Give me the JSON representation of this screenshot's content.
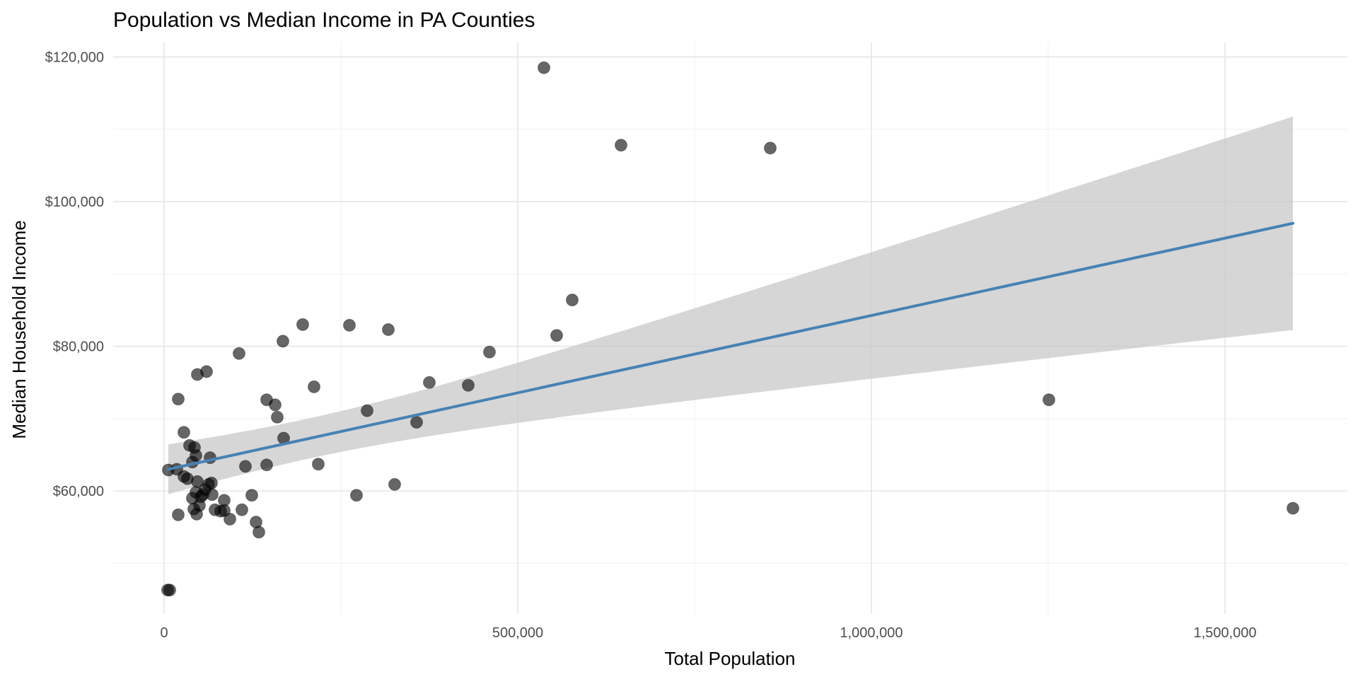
{
  "chart_data": {
    "type": "scatter",
    "title": "Population vs Median Income in PA Counties",
    "xlabel": "Total Population",
    "ylabel": "Median Household Income",
    "xlim": [
      -72000,
      1673000
    ],
    "ylim": [
      43000,
      122000
    ],
    "x_ticks": [
      0,
      500000,
      1000000,
      1500000
    ],
    "x_tick_labels": [
      "0",
      "500,000",
      "1,000,000",
      "1,500,000"
    ],
    "x_minor_ticks": [
      250000,
      750000,
      1250000
    ],
    "y_ticks": [
      60000,
      80000,
      100000,
      120000
    ],
    "y_tick_labels": [
      "$60,000",
      "$80,000",
      "$100,000",
      "$120,000"
    ],
    "y_minor_ticks": [
      50000,
      70000,
      90000,
      110000
    ],
    "grid": true,
    "legend": "none",
    "colors": {
      "points": "#000000",
      "point_opacity": 0.6,
      "trend_line": "#4682B4",
      "confidence_band": "#c8c8c8",
      "grid_major": "#e6e6e6",
      "grid_minor": "#f2f2f2",
      "tick_text": "#4d4d4d"
    },
    "points": [
      {
        "x": 5000,
        "y": 46300
      },
      {
        "x": 8000,
        "y": 46300
      },
      {
        "x": 6000,
        "y": 62900
      },
      {
        "x": 18000,
        "y": 63000
      },
      {
        "x": 20000,
        "y": 56700
      },
      {
        "x": 20000,
        "y": 72700
      },
      {
        "x": 28000,
        "y": 62000
      },
      {
        "x": 28000,
        "y": 68100
      },
      {
        "x": 33000,
        "y": 61700
      },
      {
        "x": 36000,
        "y": 66300
      },
      {
        "x": 40000,
        "y": 64000
      },
      {
        "x": 40000,
        "y": 59000
      },
      {
        "x": 42000,
        "y": 57500
      },
      {
        "x": 43000,
        "y": 66000
      },
      {
        "x": 45000,
        "y": 59800
      },
      {
        "x": 45000,
        "y": 64900
      },
      {
        "x": 46000,
        "y": 56800
      },
      {
        "x": 47000,
        "y": 61300
      },
      {
        "x": 47000,
        "y": 76100
      },
      {
        "x": 50000,
        "y": 58000
      },
      {
        "x": 52000,
        "y": 59200
      },
      {
        "x": 55000,
        "y": 59500
      },
      {
        "x": 58000,
        "y": 60200
      },
      {
        "x": 60000,
        "y": 76500
      },
      {
        "x": 63000,
        "y": 60900
      },
      {
        "x": 65000,
        "y": 64600
      },
      {
        "x": 67000,
        "y": 61100
      },
      {
        "x": 68000,
        "y": 59500
      },
      {
        "x": 72000,
        "y": 57400
      },
      {
        "x": 80000,
        "y": 57200
      },
      {
        "x": 85000,
        "y": 58700
      },
      {
        "x": 85000,
        "y": 57300
      },
      {
        "x": 93000,
        "y": 56100
      },
      {
        "x": 106000,
        "y": 79000
      },
      {
        "x": 110000,
        "y": 57400
      },
      {
        "x": 115000,
        "y": 63400
      },
      {
        "x": 124000,
        "y": 59400
      },
      {
        "x": 130000,
        "y": 55700
      },
      {
        "x": 134000,
        "y": 54300
      },
      {
        "x": 145000,
        "y": 72600
      },
      {
        "x": 145000,
        "y": 63600
      },
      {
        "x": 157000,
        "y": 71900
      },
      {
        "x": 160000,
        "y": 70200
      },
      {
        "x": 168000,
        "y": 80700
      },
      {
        "x": 169000,
        "y": 67300
      },
      {
        "x": 196000,
        "y": 83000
      },
      {
        "x": 212000,
        "y": 74400
      },
      {
        "x": 218000,
        "y": 63700
      },
      {
        "x": 262000,
        "y": 82900
      },
      {
        "x": 272000,
        "y": 59400
      },
      {
        "x": 287000,
        "y": 71100
      },
      {
        "x": 317000,
        "y": 82300
      },
      {
        "x": 326000,
        "y": 60900
      },
      {
        "x": 357000,
        "y": 69500
      },
      {
        "x": 375000,
        "y": 75000
      },
      {
        "x": 430000,
        "y": 74600
      },
      {
        "x": 460000,
        "y": 79200
      },
      {
        "x": 537000,
        "y": 118500
      },
      {
        "x": 555000,
        "y": 81500
      },
      {
        "x": 577000,
        "y": 86400
      },
      {
        "x": 646000,
        "y": 107800
      },
      {
        "x": 857000,
        "y": 107400
      },
      {
        "x": 1251000,
        "y": 72600
      },
      {
        "x": 1596000,
        "y": 57600
      }
    ],
    "trend_line": {
      "method": "linear",
      "x": [
        6000,
        1596000
      ],
      "y": [
        63000,
        97000
      ],
      "ci_lower": [
        59600,
        82300
      ],
      "ci_upper": [
        66500,
        111800
      ]
    }
  }
}
